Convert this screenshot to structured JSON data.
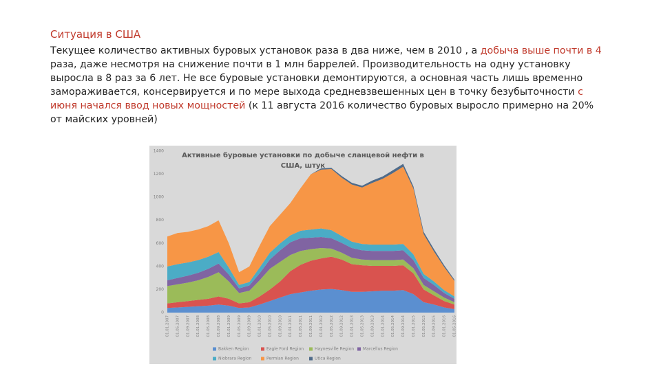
{
  "slide": {
    "title": "Ситуация в США",
    "paragraph": [
      {
        "text": "Текущее количество активных буровых установок раза в два ниже, чем в 2010 , а ",
        "color": "#262626"
      },
      {
        "text": "добыча выше почти в 4",
        "color": "#c0392b"
      },
      {
        "text": " раза, даже несмотря на снижение почти в 1 млн баррелей. Производительность на одну установку выросла в 8 раз за 6 лет. Не все буровые установки демонтируются, а основная часть лишь временно замораживается, консервируется и по мере выхода средневзвешенных цен в точку безубыточности ",
        "color": "#262626"
      },
      {
        "text": "с июня начался ввод новых мощностей",
        "color": "#c0392b"
      },
      {
        "text": " (к 11 августа 2016 количество буровых выросло примерно на 20% от майских уровней)",
        "color": "#262626"
      }
    ]
  },
  "chart_data": {
    "type": "stacked-area",
    "title": "Активные буровые установки по добыче сланцевой нефти в США, штук",
    "categories": [
      "01.01.2007",
      "01.05.2007",
      "01.09.2007",
      "01.01.2008",
      "01.05.2008",
      "01.09.2008",
      "01.01.2009",
      "01.05.2009",
      "01.09.2009",
      "01.01.2010",
      "01.05.2010",
      "01.09.2010",
      "01.01.2011",
      "01.05.2011",
      "01.09.2011",
      "01.01.2012",
      "01.05.2012",
      "01.09.2012",
      "01.01.2013",
      "01.05.2013",
      "01.09.2013",
      "01.01.2014",
      "01.05.2014",
      "01.09.2014",
      "01.01.2015",
      "01.05.2015",
      "01.09.2015",
      "01.01.2016",
      "01.05.2016"
    ],
    "series": [
      {
        "name": "Bakken Region",
        "color": "#5b8fd0",
        "values": [
          40,
          45,
          50,
          55,
          60,
          70,
          60,
          40,
          45,
          70,
          100,
          130,
          160,
          175,
          190,
          200,
          205,
          195,
          180,
          180,
          185,
          190,
          190,
          195,
          160,
          90,
          70,
          45,
          30
        ]
      },
      {
        "name": "Eagle Ford Region",
        "color": "#d9534f",
        "values": [
          40,
          45,
          50,
          55,
          60,
          70,
          60,
          40,
          45,
          70,
          100,
          140,
          200,
          240,
          260,
          270,
          280,
          265,
          240,
          230,
          220,
          215,
          215,
          215,
          180,
          110,
          80,
          55,
          40
        ]
      },
      {
        "name": "Haynesville Region",
        "color": "#9bbb59",
        "values": [
          150,
          155,
          160,
          170,
          190,
          210,
          150,
          90,
          100,
          140,
          180,
          170,
          140,
          120,
          100,
          90,
          70,
          60,
          55,
          50,
          50,
          50,
          50,
          50,
          45,
          40,
          35,
          30,
          20
        ]
      },
      {
        "name": "Marcellus Region",
        "color": "#8064a2",
        "values": [
          50,
          55,
          60,
          65,
          70,
          75,
          60,
          40,
          45,
          60,
          80,
          100,
          110,
          110,
          100,
          95,
          90,
          85,
          85,
          80,
          80,
          80,
          80,
          80,
          70,
          60,
          55,
          40,
          30
        ]
      },
      {
        "name": "Niobrara Region",
        "color": "#4bacc6",
        "values": [
          120,
          120,
          115,
          110,
          105,
          100,
          60,
          30,
          30,
          50,
          60,
          60,
          60,
          65,
          70,
          75,
          70,
          60,
          55,
          55,
          55,
          55,
          55,
          55,
          50,
          35,
          30,
          25,
          20
        ]
      },
      {
        "name": "Permian Region",
        "color": "#f79646",
        "values": [
          260,
          270,
          265,
          265,
          265,
          275,
          210,
          110,
          135,
          190,
          230,
          250,
          280,
          370,
          480,
          510,
          530,
          505,
          495,
          490,
          535,
          570,
          620,
          670,
          570,
          345,
          260,
          200,
          135
        ]
      },
      {
        "name": "Utica Region",
        "color": "#4f6b8a",
        "values": [
          0,
          0,
          0,
          0,
          0,
          0,
          0,
          0,
          0,
          0,
          0,
          0,
          0,
          0,
          0,
          10,
          10,
          15,
          15,
          15,
          20,
          20,
          25,
          25,
          20,
          20,
          20,
          15,
          10
        ]
      }
    ],
    "ylim": [
      0,
      1400
    ],
    "yticks": [
      0,
      200,
      400,
      600,
      800,
      1000,
      1200,
      1400
    ],
    "grid": false
  }
}
